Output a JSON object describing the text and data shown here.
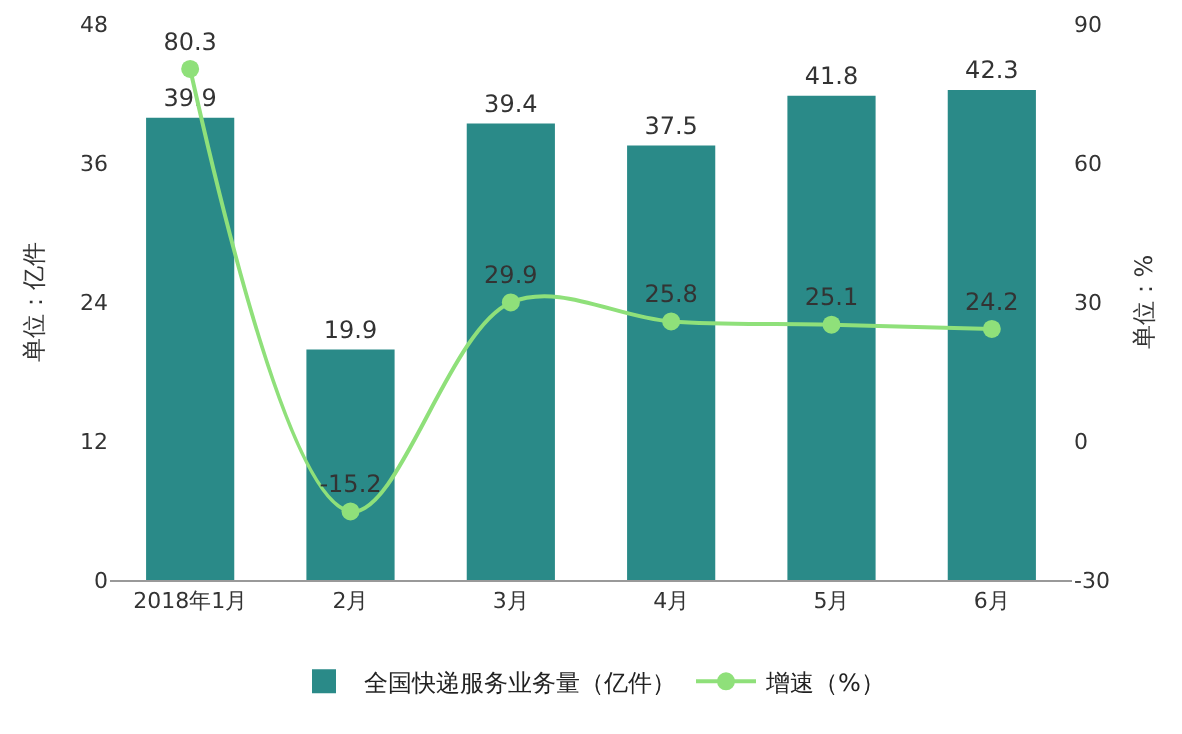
{
  "chart_data": {
    "type": "bar",
    "categories": [
      "2018年1月",
      "2月",
      "3月",
      "4月",
      "5月",
      "6月"
    ],
    "series": [
      {
        "name": "全国快递服务业务量（亿件）",
        "color": "#2a8a88",
        "values": [
          39.9,
          19.9,
          39.4,
          37.5,
          41.8,
          42.3
        ]
      },
      {
        "name": "增速（%）",
        "type": "line",
        "axis": "y2",
        "color": "#8fe07a",
        "values": [
          80.3,
          -15.2,
          29.9,
          25.8,
          25.1,
          24.2
        ]
      }
    ],
    "ylim": [
      0,
      48
    ],
    "yticks": [
      0,
      12,
      24,
      36,
      48
    ],
    "y2lim": [
      -30,
      90
    ],
    "y2ticks": [
      -30,
      0,
      30,
      60,
      90
    ],
    "ylabel": "单位：亿件",
    "y2label": "单位：%",
    "legend": "bottom",
    "data_labels": true,
    "marker": "circle"
  }
}
